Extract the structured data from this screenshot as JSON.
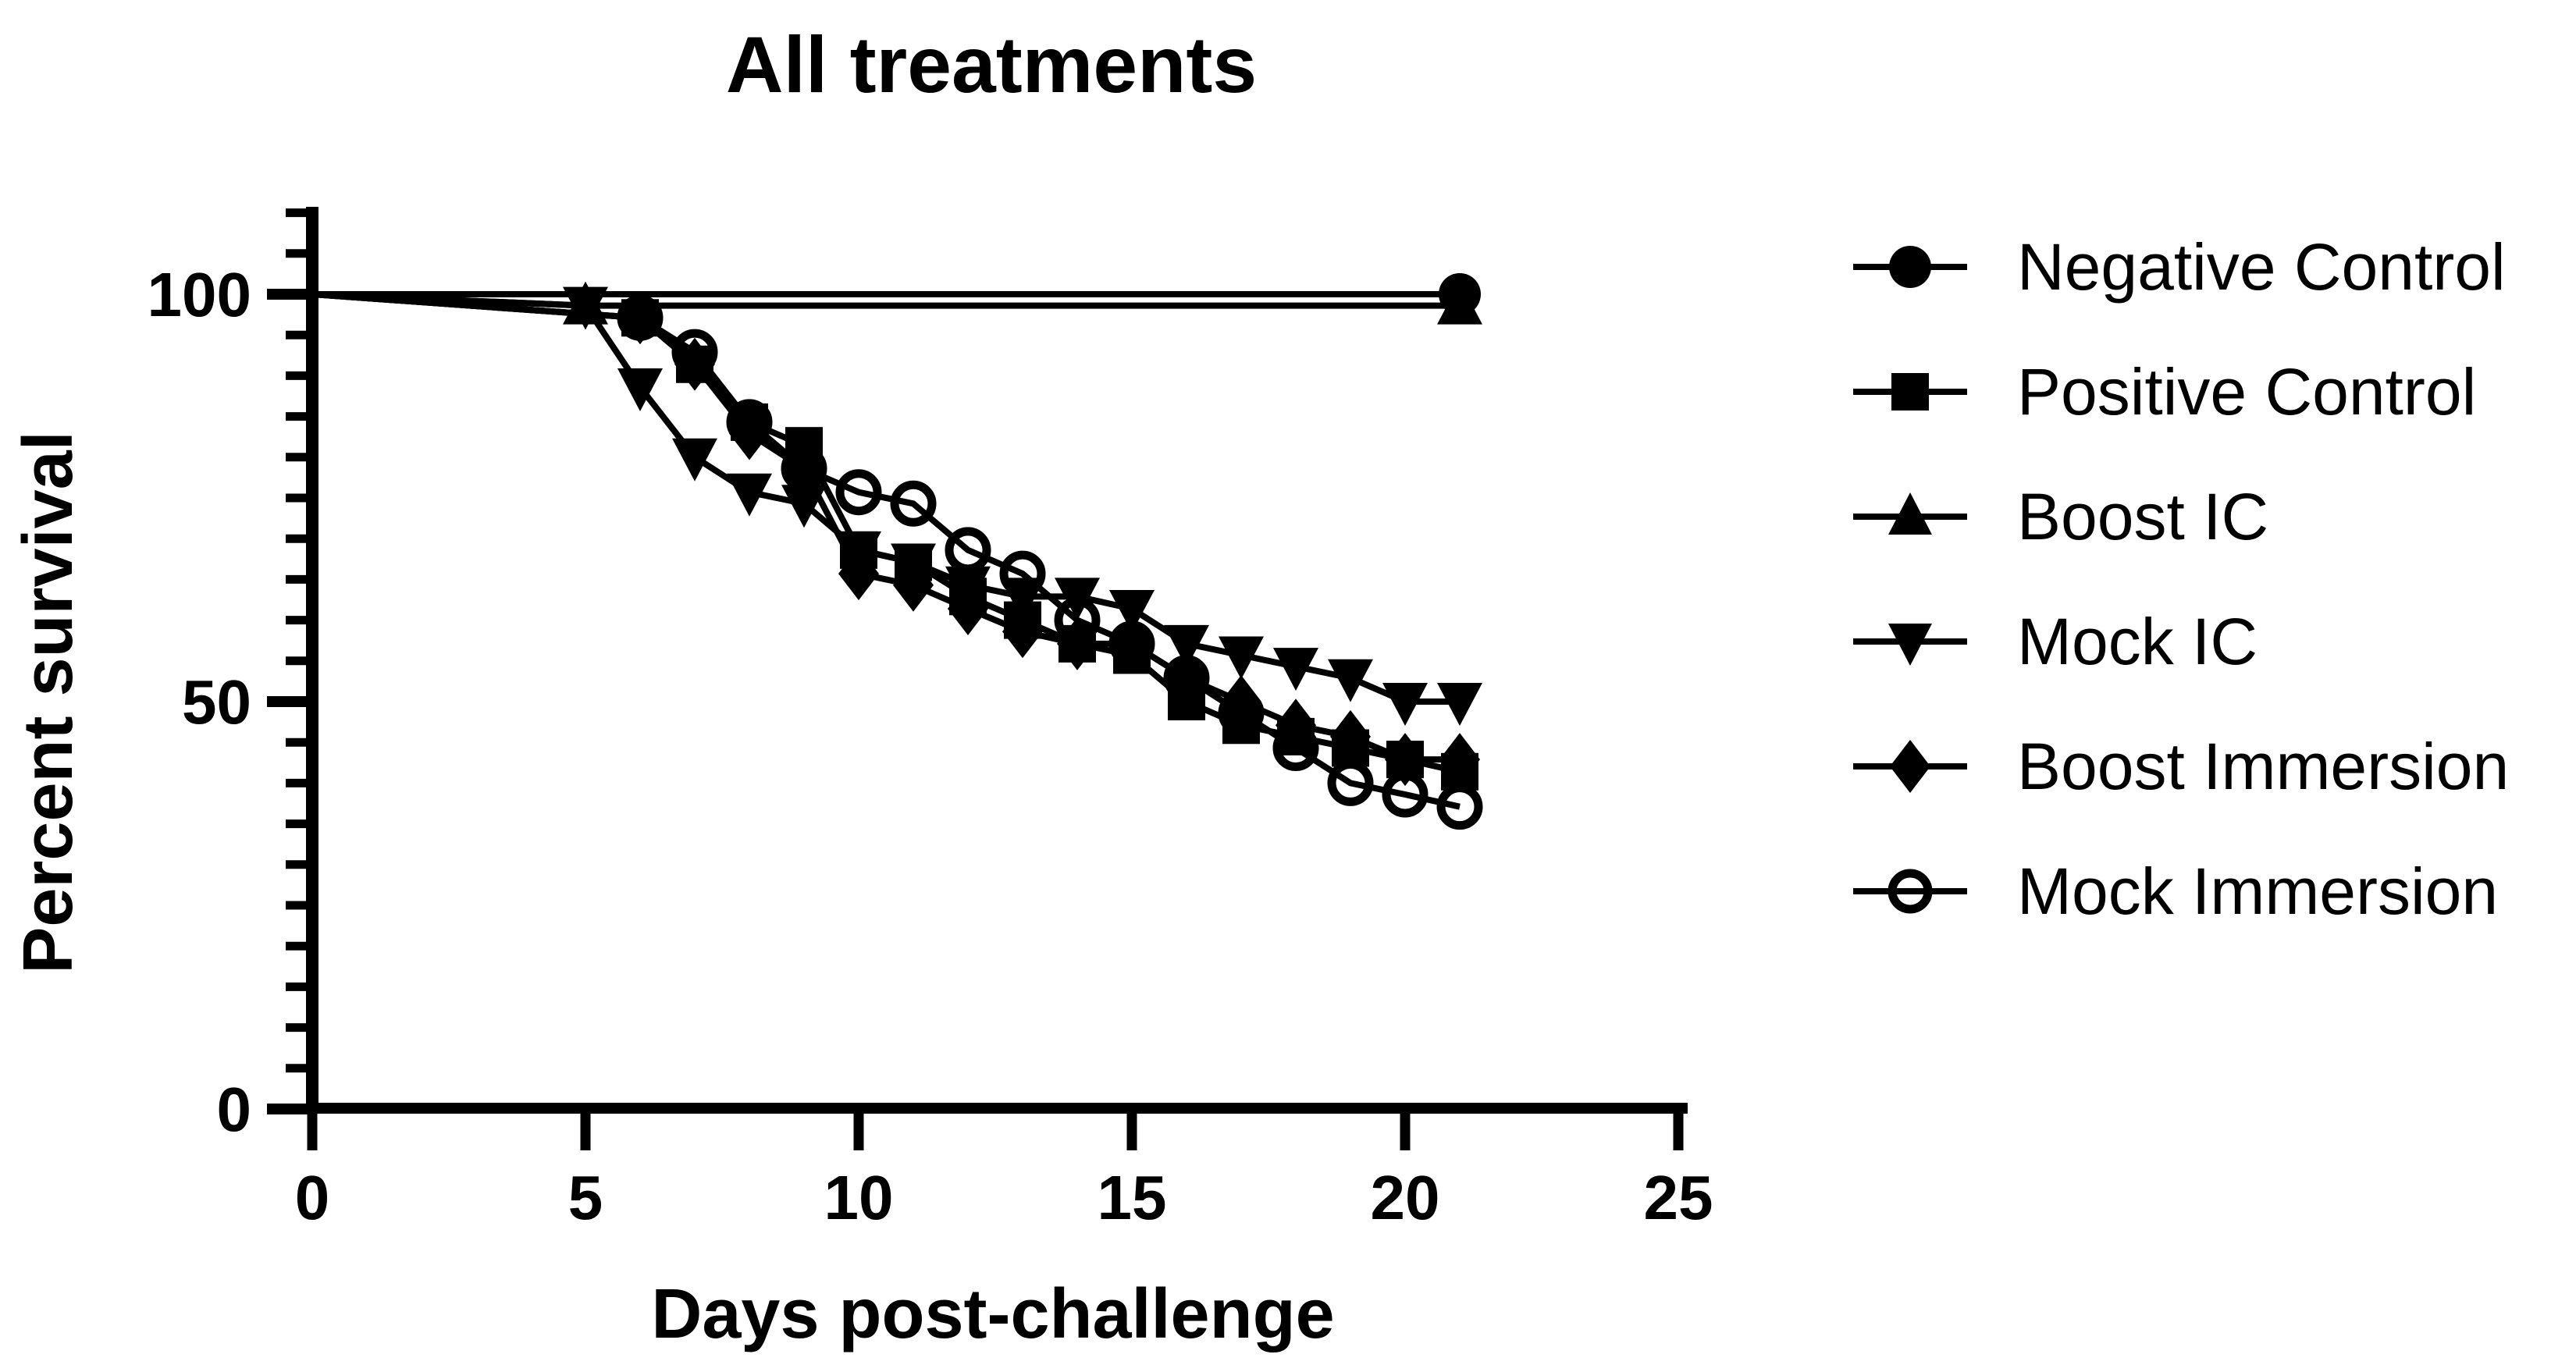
{
  "title": "All treatments",
  "colors": {
    "foreground": "#000000",
    "background": "#ffffff"
  },
  "chart_data": {
    "type": "line",
    "title": "All treatments",
    "xlabel": "Days post-challenge",
    "ylabel": "Percent survival",
    "xlim": [
      0,
      25
    ],
    "ylim": [
      0,
      110
    ],
    "xticks": [
      0,
      5,
      10,
      15,
      20,
      25
    ],
    "yticks_major": [
      0,
      50,
      100
    ],
    "ytick_minor_step": 5,
    "grid": false,
    "legend_position": "right",
    "series": [
      {
        "name": "Negative Control",
        "marker": "filled-circle",
        "color": "#000000",
        "points": [
          [
            0,
            100
          ],
          [
            21,
            100
          ]
        ],
        "marker_days": [
          21
        ]
      },
      {
        "name": "Positive Control",
        "marker": "filled-square",
        "color": "#000000",
        "points": [
          [
            0,
            100
          ],
          [
            6,
            97.1
          ],
          [
            7,
            91.4
          ],
          [
            8,
            84.3
          ],
          [
            9,
            81.4
          ],
          [
            10,
            68.6
          ],
          [
            11,
            67.1
          ],
          [
            12,
            62.9
          ],
          [
            13,
            60.0
          ],
          [
            14,
            57.1
          ],
          [
            15,
            55.7
          ],
          [
            16,
            50.0
          ],
          [
            17,
            47.1
          ],
          [
            18,
            45.7
          ],
          [
            19,
            44.3
          ],
          [
            20,
            42.9
          ],
          [
            21,
            41.4
          ]
        ],
        "marker_days": [
          6,
          7,
          8,
          9,
          10,
          11,
          12,
          13,
          14,
          15,
          16,
          17,
          18,
          19,
          20,
          21
        ]
      },
      {
        "name": "Boost IC",
        "marker": "filled-triangle-up",
        "color": "#000000",
        "points": [
          [
            0,
            100
          ],
          [
            5,
            98.6
          ],
          [
            21,
            98.6
          ]
        ],
        "marker_days": [
          5,
          21
        ]
      },
      {
        "name": "Mock IC",
        "marker": "filled-triangle-down",
        "color": "#000000",
        "points": [
          [
            0,
            100
          ],
          [
            5,
            98.6
          ],
          [
            6,
            88.6
          ],
          [
            7,
            80.0
          ],
          [
            8,
            75.7
          ],
          [
            9,
            74.3
          ],
          [
            10,
            68.6
          ],
          [
            11,
            67.1
          ],
          [
            12,
            64.3
          ],
          [
            13,
            62.9
          ],
          [
            14,
            62.9
          ],
          [
            15,
            61.4
          ],
          [
            16,
            57.1
          ],
          [
            17,
            55.7
          ],
          [
            18,
            54.3
          ],
          [
            19,
            52.9
          ],
          [
            20,
            50.0
          ],
          [
            21,
            50.0
          ]
        ],
        "marker_days": [
          5,
          6,
          7,
          8,
          9,
          10,
          11,
          12,
          13,
          14,
          15,
          16,
          17,
          18,
          19,
          20,
          21
        ]
      },
      {
        "name": "Boost Immersion",
        "marker": "filled-diamond",
        "color": "#000000",
        "points": [
          [
            0,
            100
          ],
          [
            6,
            97.1
          ],
          [
            7,
            91.4
          ],
          [
            8,
            82.9
          ],
          [
            9,
            78.6
          ],
          [
            10,
            65.7
          ],
          [
            11,
            64.3
          ],
          [
            12,
            61.4
          ],
          [
            13,
            58.6
          ],
          [
            14,
            57.1
          ],
          [
            15,
            57.1
          ],
          [
            16,
            52.9
          ],
          [
            17,
            50.0
          ],
          [
            18,
            47.1
          ],
          [
            19,
            45.7
          ],
          [
            20,
            42.9
          ],
          [
            21,
            42.9
          ]
        ],
        "marker_days": [
          6,
          7,
          8,
          9,
          10,
          11,
          12,
          13,
          14,
          15,
          16,
          17,
          18,
          19,
          20,
          21
        ]
      },
      {
        "name": "Mock Immersion",
        "marker": "open-circle",
        "color": "#000000",
        "points": [
          [
            0,
            100
          ],
          [
            6,
            97.1
          ],
          [
            7,
            92.9
          ],
          [
            8,
            84.3
          ],
          [
            9,
            78.6
          ],
          [
            10,
            75.7
          ],
          [
            11,
            74.3
          ],
          [
            12,
            68.6
          ],
          [
            13,
            65.7
          ],
          [
            14,
            60.0
          ],
          [
            15,
            57.1
          ],
          [
            16,
            52.9
          ],
          [
            17,
            48.6
          ],
          [
            18,
            44.3
          ],
          [
            19,
            40.0
          ],
          [
            20,
            38.6
          ],
          [
            21,
            37.1
          ]
        ],
        "marker_days": [
          6,
          7,
          8,
          9,
          10,
          11,
          12,
          13,
          14,
          15,
          16,
          17,
          18,
          19,
          20,
          21
        ]
      }
    ]
  }
}
